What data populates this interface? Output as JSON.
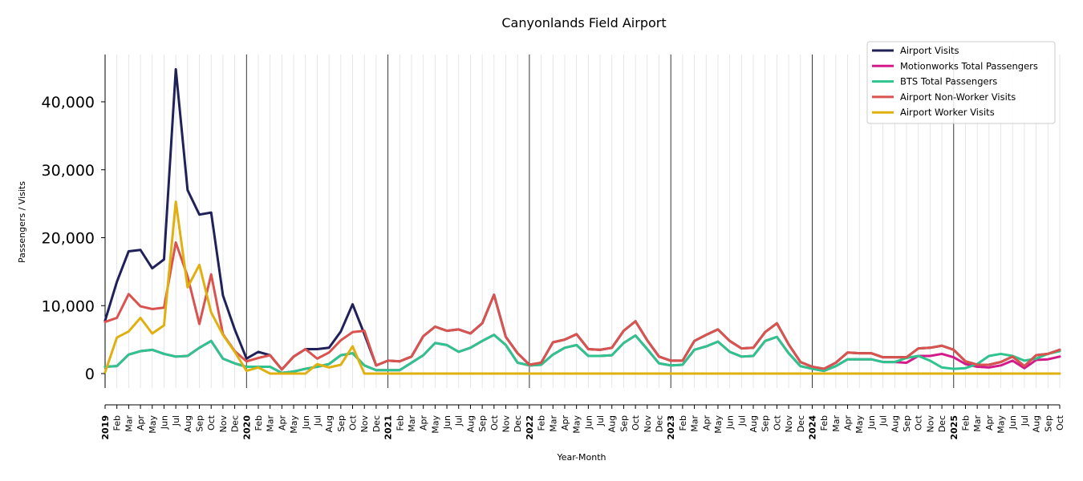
{
  "chart_data": {
    "type": "line",
    "title": "Canyonlands Field Airport",
    "xlabel": "Year-Month",
    "ylabel": "Passengers / Visits",
    "ylim": [
      -2300,
      47000
    ],
    "yticks": [
      0,
      10000,
      20000,
      30000,
      40000
    ],
    "ytick_labels": [
      "0",
      "10,000",
      "20,000",
      "30,000",
      "40,000"
    ],
    "grid": "vertical monthly lines, darker lines at year boundaries",
    "legend_position": "top-right",
    "x": [
      "2019",
      "Feb",
      "Mar",
      "Apr",
      "May",
      "Jun",
      "Jul",
      "Aug",
      "Sep",
      "Oct",
      "Nov",
      "Dec",
      "2020",
      "Feb",
      "Mar",
      "Apr",
      "May",
      "Jun",
      "Jul",
      "Aug",
      "Sep",
      "Oct",
      "Nov",
      "Dec",
      "2021",
      "Feb",
      "Mar",
      "Apr",
      "May",
      "Jun",
      "Jul",
      "Aug",
      "Sep",
      "Oct",
      "Nov",
      "Dec",
      "2022",
      "Feb",
      "Mar",
      "Apr",
      "May",
      "Jun",
      "Jul",
      "Aug",
      "Sep",
      "Oct",
      "Nov",
      "Dec",
      "2023",
      "Feb",
      "Mar",
      "Apr",
      "May",
      "Jun",
      "Jul",
      "Aug",
      "Sep",
      "Oct",
      "Nov",
      "Dec",
      "2024",
      "Feb",
      "Mar",
      "Apr",
      "May",
      "Jun",
      "Jul",
      "Aug",
      "Sep",
      "Oct",
      "Nov",
      "Dec",
      "2025",
      "Feb",
      "Mar",
      "Apr",
      "May",
      "Jun",
      "Jul",
      "Aug",
      "Sep",
      "Oct"
    ],
    "series": [
      {
        "name": "Airport Visits",
        "color": "#21215a",
        "values": [
          7800,
          13500,
          18000,
          18200,
          15500,
          16800,
          44800,
          27000,
          23400,
          23700,
          11500,
          6500,
          2200,
          3200,
          2700,
          600,
          2500,
          3600,
          3600,
          3800,
          6200,
          10200,
          5800,
          1200,
          1900,
          1800,
          2500,
          5500,
          6900,
          6300,
          6500,
          5900,
          7400,
          11600,
          5400,
          3000,
          1300,
          1600,
          4600,
          5000,
          5800,
          3600,
          3500,
          3800,
          6300,
          7700,
          4900,
          2500,
          1900,
          1900,
          4800,
          5700,
          6500,
          4800,
          3700,
          3800,
          6100,
          7400,
          4300,
          1700,
          1000,
          700,
          1600,
          3100,
          3000,
          3000,
          2400,
          2400,
          2400,
          3700,
          3800,
          4100,
          3500,
          1800,
          1300,
          1300,
          1700,
          2500,
          1100,
          2700,
          2900,
          3500
        ]
      },
      {
        "name": "Motionworks Total Passengers",
        "color": "#d41a8a",
        "values": [
          1000,
          1100,
          2800,
          3300,
          3500,
          2900,
          2500,
          2600,
          3800,
          4800,
          2200,
          1500,
          1000,
          1000,
          1000,
          100,
          300,
          700,
          1000,
          1400,
          2700,
          3000,
          1200,
          500,
          500,
          500,
          1600,
          2700,
          4500,
          4200,
          3200,
          3800,
          4800,
          5700,
          4200,
          1600,
          1200,
          1300,
          2800,
          3800,
          4200,
          2600,
          2600,
          2700,
          4500,
          5600,
          3600,
          1500,
          1200,
          1300,
          3500,
          4000,
          4700,
          3200,
          2500,
          2600,
          4800,
          5400,
          3000,
          1100,
          700,
          400,
          1100,
          2100,
          2100,
          2100,
          1700,
          1700,
          1600,
          2600,
          2600,
          2900,
          2400,
          1400,
          1000,
          900,
          1200,
          1900,
          800,
          2000,
          2100,
          2500
        ]
      },
      {
        "name": "BTS Total Passengers",
        "color": "#2ec48e",
        "values": [
          1000,
          1100,
          2800,
          3300,
          3500,
          2900,
          2500,
          2600,
          3800,
          4800,
          2200,
          1500,
          1000,
          1000,
          1000,
          100,
          300,
          700,
          1000,
          1400,
          2700,
          3000,
          1200,
          500,
          500,
          500,
          1600,
          2700,
          4500,
          4200,
          3200,
          3800,
          4800,
          5700,
          4200,
          1600,
          1200,
          1300,
          2800,
          3800,
          4200,
          2600,
          2600,
          2700,
          4500,
          5600,
          3600,
          1500,
          1200,
          1300,
          3500,
          4000,
          4700,
          3200,
          2500,
          2600,
          4800,
          5400,
          3000,
          1100,
          700,
          400,
          1100,
          2100,
          2100,
          2100,
          1700,
          1700,
          2300,
          2600,
          1900,
          900,
          700,
          800,
          1400,
          2600,
          2900,
          2600,
          1900,
          2200,
          2900,
          3300
        ]
      },
      {
        "name": "Airport Non-Worker Visits",
        "color": "#d9534f",
        "values": [
          7600,
          8200,
          11700,
          9900,
          9500,
          9700,
          19300,
          14300,
          7300,
          14600,
          5800,
          3300,
          1800,
          2300,
          2700,
          600,
          2500,
          3600,
          2200,
          3100,
          4900,
          6100,
          6300,
          1200,
          1900,
          1800,
          2500,
          5500,
          6900,
          6300,
          6500,
          5900,
          7400,
          11600,
          5400,
          3000,
          1300,
          1600,
          4600,
          5000,
          5800,
          3600,
          3500,
          3800,
          6300,
          7700,
          4900,
          2500,
          1900,
          1900,
          4800,
          5700,
          6500,
          4800,
          3700,
          3800,
          6100,
          7400,
          4300,
          1700,
          1000,
          700,
          1600,
          3100,
          3000,
          3000,
          2400,
          2400,
          2400,
          3700,
          3800,
          4100,
          3500,
          1800,
          1300,
          1300,
          1700,
          2500,
          1100,
          2700,
          2900,
          3500
        ]
      },
      {
        "name": "Airport Worker Visits",
        "color": "#e0b010",
        "values": [
          200,
          5300,
          6200,
          8200,
          5900,
          7100,
          25300,
          12700,
          16000,
          9000,
          5700,
          3200,
          400,
          900,
          0,
          0,
          0,
          0,
          1400,
          900,
          1300,
          4000,
          0,
          0,
          0,
          0,
          0,
          0,
          0,
          0,
          0,
          0,
          0,
          0,
          0,
          0,
          0,
          0,
          0,
          0,
          0,
          0,
          0,
          0,
          0,
          0,
          0,
          0,
          0,
          0,
          0,
          0,
          0,
          0,
          0,
          0,
          0,
          0,
          0,
          0,
          0,
          0,
          0,
          0,
          0,
          0,
          0,
          0,
          0,
          0,
          0,
          0,
          0,
          0,
          0,
          0,
          0,
          0,
          0,
          0,
          0,
          0
        ]
      }
    ]
  }
}
